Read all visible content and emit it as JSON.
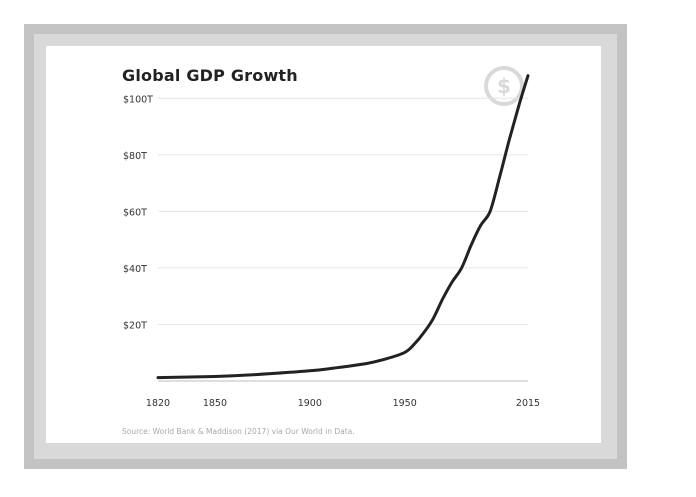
{
  "badge": {
    "icon": "dollar-icon",
    "glyph": "$",
    "color": "#d9d9d9"
  },
  "chart_data": {
    "type": "line",
    "title": "Global GDP Growth",
    "xlabel": "",
    "ylabel": "",
    "source": "Source: World Bank & Maddison (2017) via Our World in Data.",
    "xlim": [
      1820,
      2015
    ],
    "ylim": [
      0,
      110
    ],
    "x_ticks": [
      1820,
      1850,
      1900,
      1950,
      2015
    ],
    "x_tick_labels": [
      "1820",
      "1850",
      "1900",
      "1950",
      "2015"
    ],
    "y_ticks": [
      20,
      40,
      60,
      80,
      100
    ],
    "y_tick_labels": [
      "$20T",
      "$40T",
      "$60T",
      "$80T",
      "$100T"
    ],
    "grid": true,
    "line_color": "#222222",
    "series": [
      {
        "x": [
          1820,
          1850,
          1870,
          1900,
          1913,
          1930,
          1940,
          1950,
          1955,
          1960,
          1965,
          1970,
          1975,
          1980,
          1985,
          1990,
          1995,
          2000,
          2005,
          2010,
          2015
        ],
        "values": [
          1.2,
          1.6,
          2.2,
          3.6,
          4.6,
          6.2,
          7.8,
          10.1,
          13,
          17,
          22,
          29,
          35,
          40,
          48,
          55,
          60,
          72,
          85,
          97,
          108
        ]
      }
    ]
  }
}
